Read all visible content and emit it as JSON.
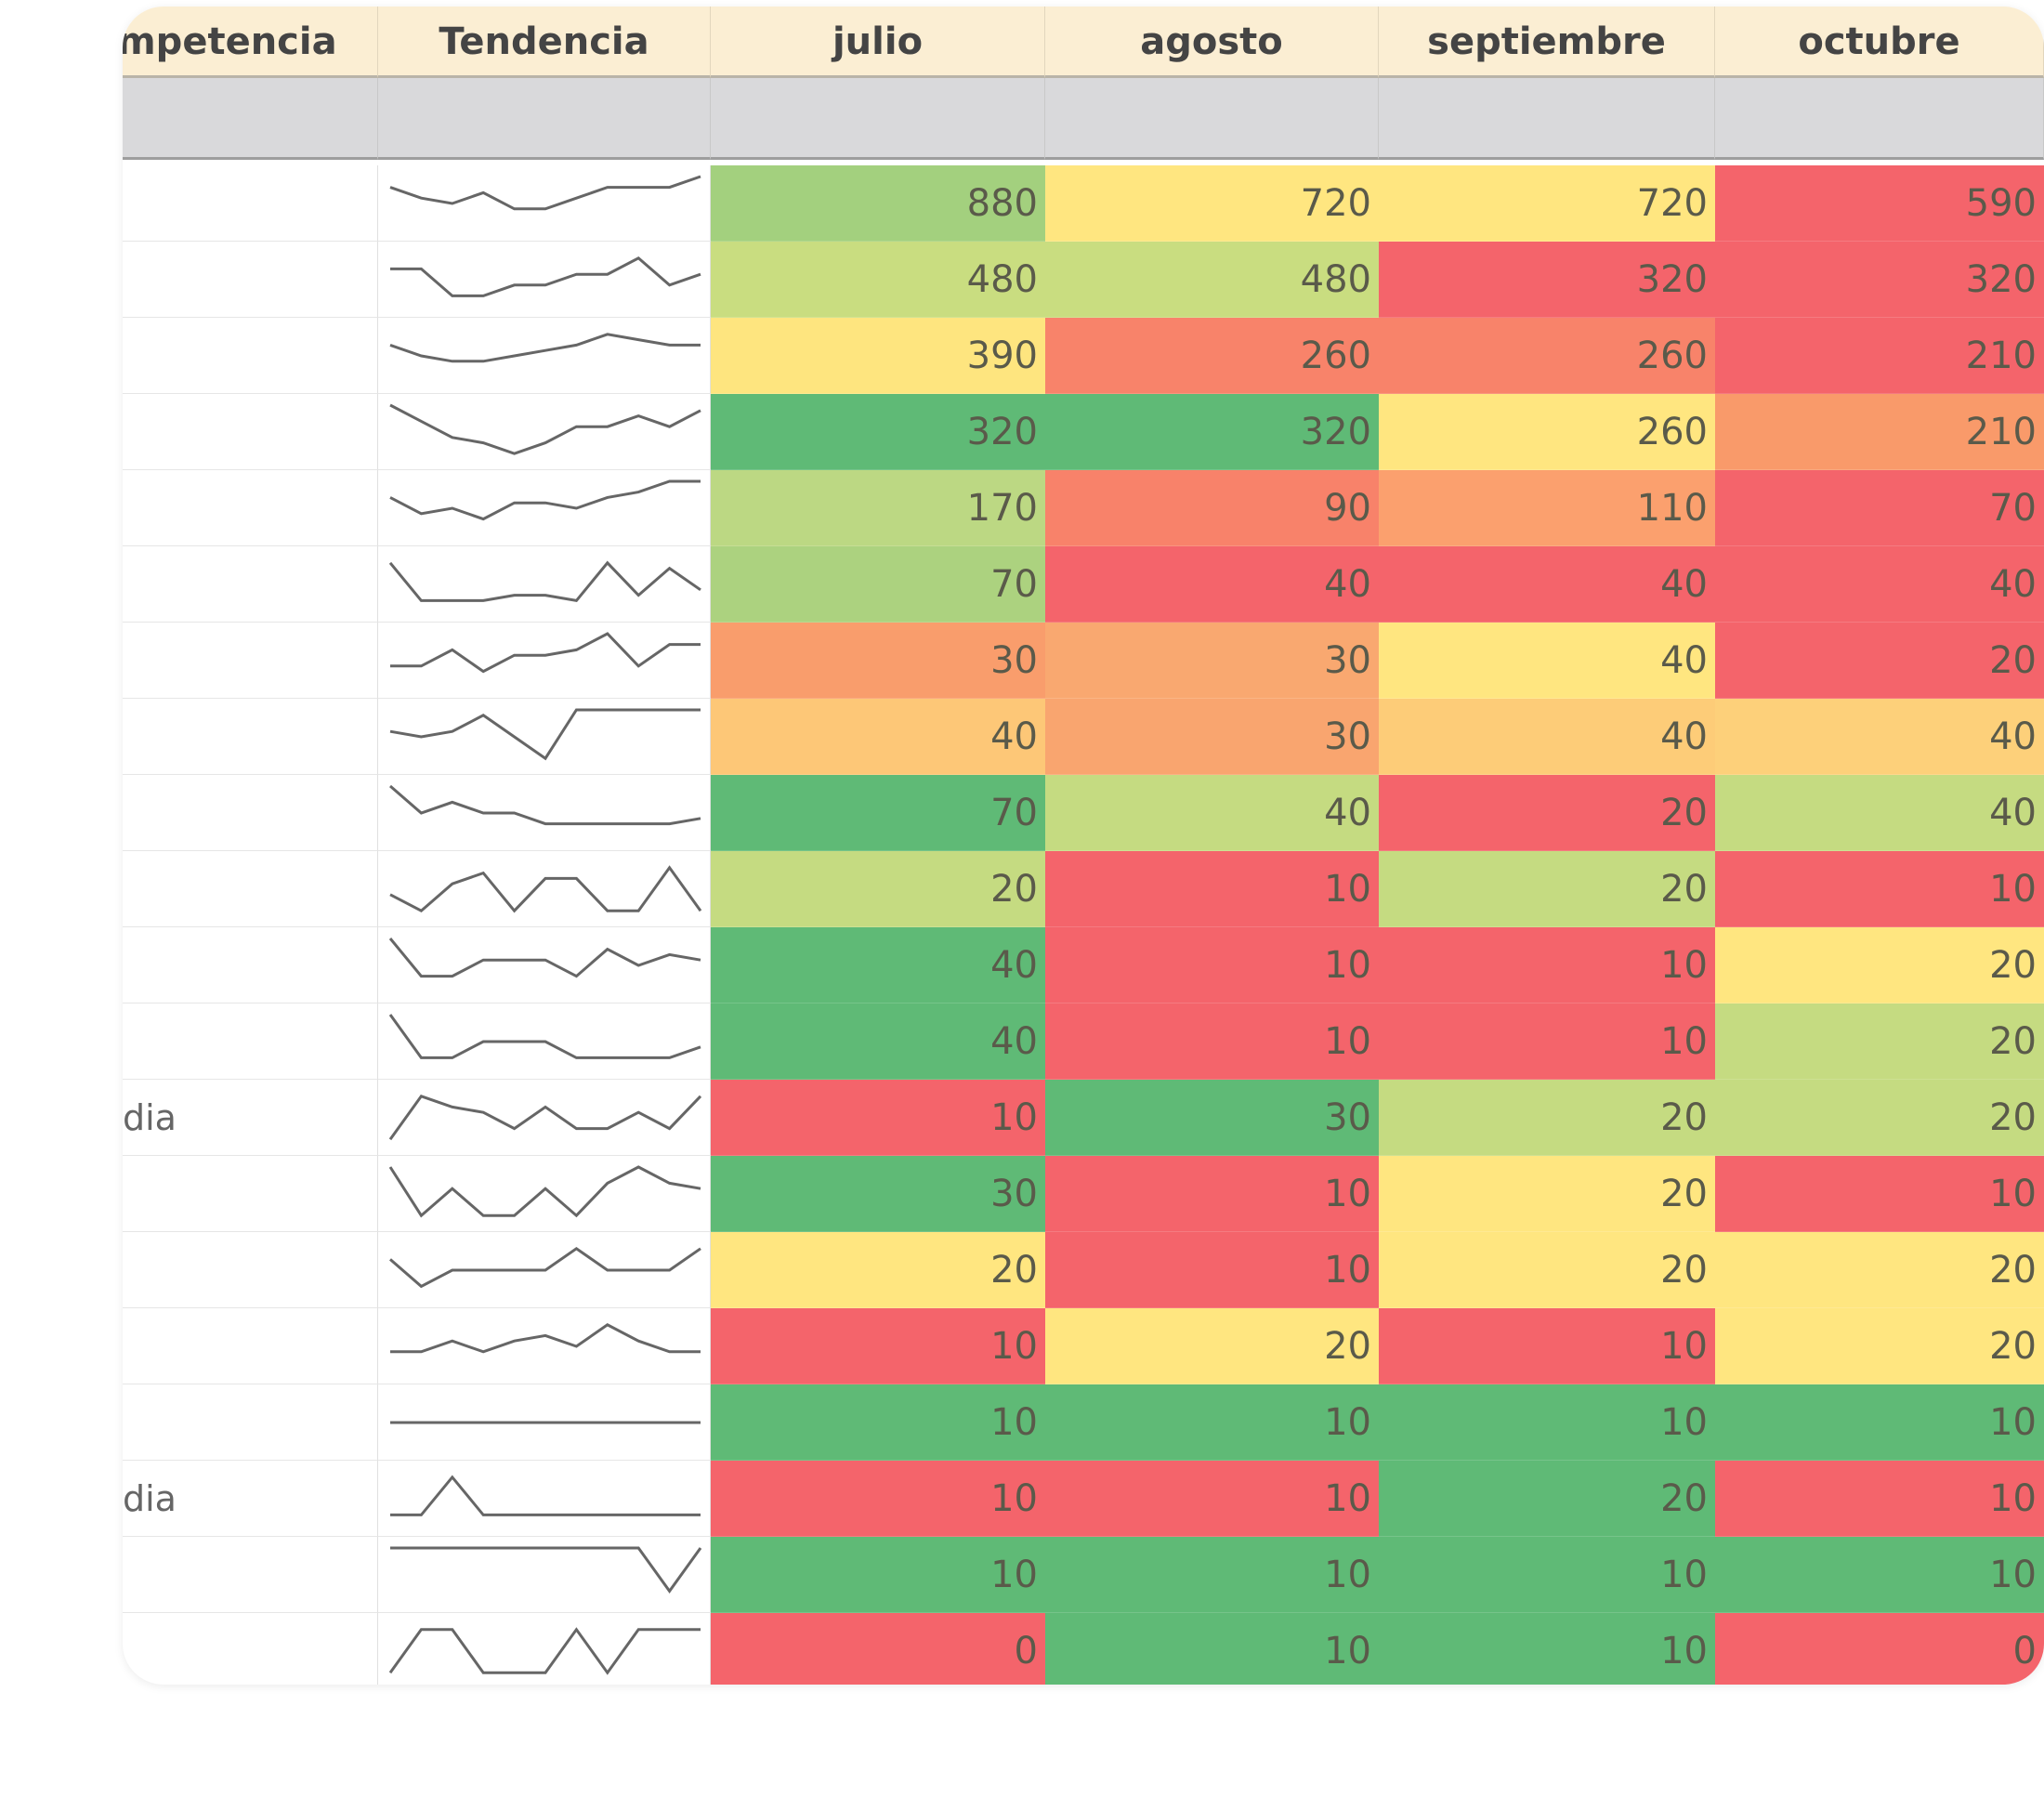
{
  "table": {
    "header": [
      "mpetencia",
      "Tendencia",
      "julio",
      "agosto",
      "septiembre",
      "octubre"
    ],
    "rows": [
      {
        "label": null,
        "cells": [
          {
            "value": 880,
            "color": "#a3d07e"
          },
          {
            "value": 720,
            "color": "#ffe680"
          },
          {
            "value": 720,
            "color": "#ffe680"
          },
          {
            "value": 590,
            "color": "#f4646b"
          }
        ]
      },
      {
        "label": null,
        "cells": [
          {
            "value": 480,
            "color": "#c9dd80"
          },
          {
            "value": 480,
            "color": "#c9dd80"
          },
          {
            "value": 320,
            "color": "#f4646b"
          },
          {
            "value": 320,
            "color": "#f4646b"
          }
        ]
      },
      {
        "label": null,
        "cells": [
          {
            "value": 390,
            "color": "#fee57f"
          },
          {
            "value": 260,
            "color": "#f8836a"
          },
          {
            "value": 260,
            "color": "#f8836a"
          },
          {
            "value": 210,
            "color": "#f4646b"
          }
        ]
      },
      {
        "label": null,
        "cells": [
          {
            "value": 320,
            "color": "#5fba76"
          },
          {
            "value": 320,
            "color": "#5fba76"
          },
          {
            "value": 260,
            "color": "#ffe680"
          },
          {
            "value": 210,
            "color": "#f99a6a"
          }
        ]
      },
      {
        "label": null,
        "cells": [
          {
            "value": 170,
            "color": "#bcd883"
          },
          {
            "value": 90,
            "color": "#f8826a"
          },
          {
            "value": 110,
            "color": "#fba06e"
          },
          {
            "value": 70,
            "color": "#f4646b"
          }
        ]
      },
      {
        "label": null,
        "cells": [
          {
            "value": 70,
            "color": "#acd27f"
          },
          {
            "value": 40,
            "color": "#f4646b"
          },
          {
            "value": 40,
            "color": "#f4646b"
          },
          {
            "value": 40,
            "color": "#f4646b"
          }
        ]
      },
      {
        "label": null,
        "cells": [
          {
            "value": 30,
            "color": "#f99d6c"
          },
          {
            "value": 30,
            "color": "#f9a870"
          },
          {
            "value": 40,
            "color": "#ffe680"
          },
          {
            "value": 20,
            "color": "#f4646b"
          }
        ]
      },
      {
        "label": null,
        "cells": [
          {
            "value": 40,
            "color": "#fdc777"
          },
          {
            "value": 30,
            "color": "#f9a56f"
          },
          {
            "value": 40,
            "color": "#fdcc78"
          },
          {
            "value": 40,
            "color": "#fdd07a"
          }
        ]
      },
      {
        "label": null,
        "cells": [
          {
            "value": 70,
            "color": "#5fba76"
          },
          {
            "value": 40,
            "color": "#c5db81"
          },
          {
            "value": 20,
            "color": "#f4646b"
          },
          {
            "value": 40,
            "color": "#c5db81"
          }
        ]
      },
      {
        "label": null,
        "cells": [
          {
            "value": 20,
            "color": "#c5db81"
          },
          {
            "value": 10,
            "color": "#f4646b"
          },
          {
            "value": 20,
            "color": "#c5db81"
          },
          {
            "value": 10,
            "color": "#f4646b"
          }
        ]
      },
      {
        "label": null,
        "cells": [
          {
            "value": 40,
            "color": "#5fba76"
          },
          {
            "value": 10,
            "color": "#f4646b"
          },
          {
            "value": 10,
            "color": "#f4646b"
          },
          {
            "value": 20,
            "color": "#ffe680"
          }
        ]
      },
      {
        "label": null,
        "cells": [
          {
            "value": 40,
            "color": "#5fba76"
          },
          {
            "value": 10,
            "color": "#f4646b"
          },
          {
            "value": 10,
            "color": "#f4646b"
          },
          {
            "value": 20,
            "color": "#c5db81"
          }
        ]
      },
      {
        "label": "dia",
        "cells": [
          {
            "value": 10,
            "color": "#f4646b"
          },
          {
            "value": 30,
            "color": "#5fba76"
          },
          {
            "value": 20,
            "color": "#c5db81"
          },
          {
            "value": 20,
            "color": "#c5db81"
          }
        ]
      },
      {
        "label": null,
        "cells": [
          {
            "value": 30,
            "color": "#5fba76"
          },
          {
            "value": 10,
            "color": "#f4646b"
          },
          {
            "value": 20,
            "color": "#ffe680"
          },
          {
            "value": 10,
            "color": "#f4646b"
          }
        ]
      },
      {
        "label": null,
        "cells": [
          {
            "value": 20,
            "color": "#ffe680"
          },
          {
            "value": 10,
            "color": "#f4646b"
          },
          {
            "value": 20,
            "color": "#ffe680"
          },
          {
            "value": 20,
            "color": "#ffe680"
          }
        ]
      },
      {
        "label": null,
        "cells": [
          {
            "value": 10,
            "color": "#f4646b"
          },
          {
            "value": 20,
            "color": "#ffe680"
          },
          {
            "value": 10,
            "color": "#f4646b"
          },
          {
            "value": 20,
            "color": "#ffe680"
          }
        ]
      },
      {
        "label": null,
        "cells": [
          {
            "value": 10,
            "color": "#5fba76"
          },
          {
            "value": 10,
            "color": "#5fba76"
          },
          {
            "value": 10,
            "color": "#5fba76"
          },
          {
            "value": 10,
            "color": "#5fba76"
          }
        ]
      },
      {
        "label": "dia",
        "cells": [
          {
            "value": 10,
            "color": "#f4646b"
          },
          {
            "value": 10,
            "color": "#f4646b"
          },
          {
            "value": 20,
            "color": "#5fba76"
          },
          {
            "value": 10,
            "color": "#f4646b"
          }
        ]
      },
      {
        "label": null,
        "cells": [
          {
            "value": 10,
            "color": "#5fba76"
          },
          {
            "value": 10,
            "color": "#5fba76"
          },
          {
            "value": 10,
            "color": "#5fba76"
          },
          {
            "value": 10,
            "color": "#5fba76"
          }
        ]
      },
      {
        "label": null,
        "cells": [
          {
            "value": 0,
            "color": "#f4646b"
          },
          {
            "value": 10,
            "color": "#5fba76"
          },
          {
            "value": 10,
            "color": "#5fba76"
          },
          {
            "value": 0,
            "color": "#f4646b"
          }
        ]
      }
    ]
  }
}
